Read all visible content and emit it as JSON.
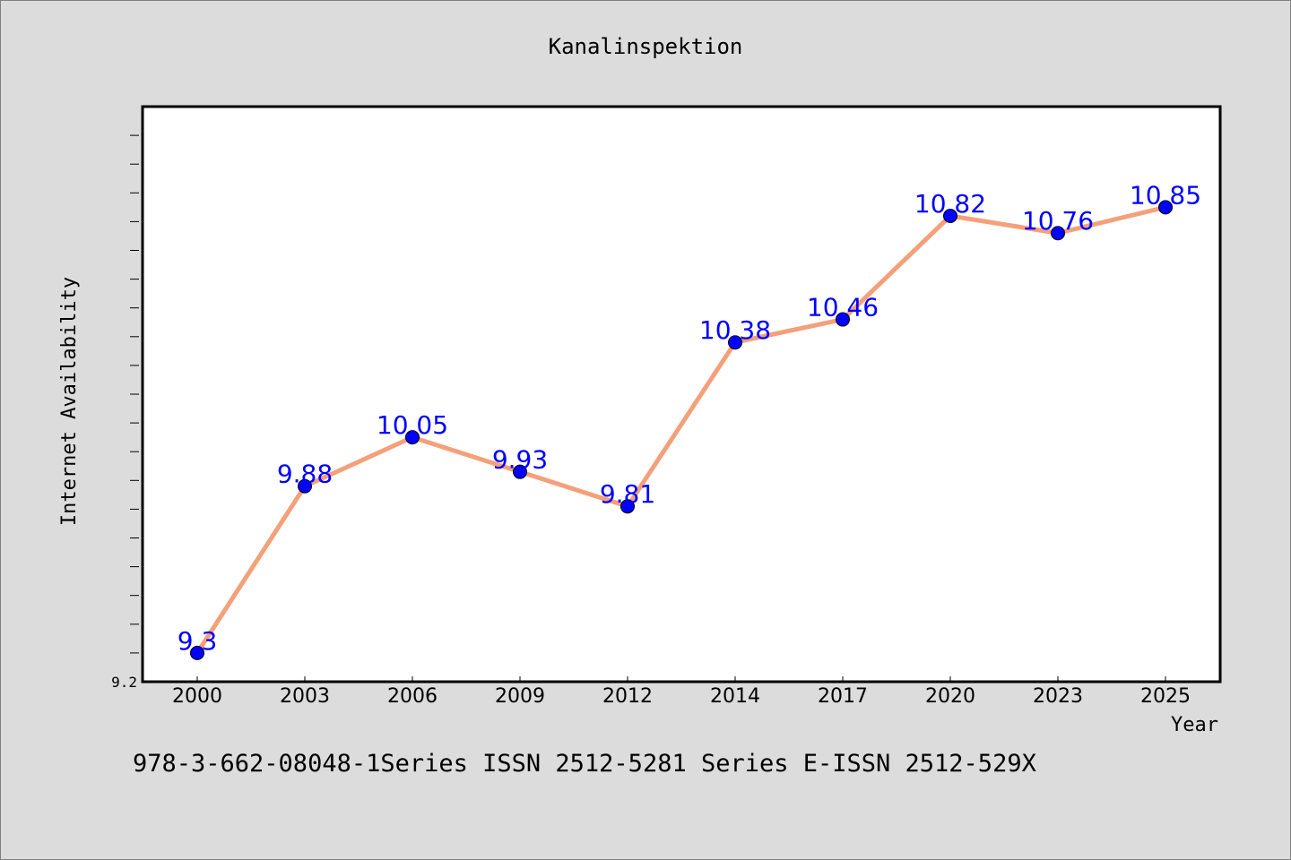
{
  "chart_data": {
    "type": "line",
    "title": "Kanalinspektion",
    "xlabel": "Year",
    "ylabel": "Internet Availability",
    "categories": [
      "2000",
      "2003",
      "2006",
      "2009",
      "2012",
      "2014",
      "2017",
      "2020",
      "2023",
      "2025"
    ],
    "values": [
      9.3,
      9.88,
      10.05,
      9.93,
      9.81,
      10.38,
      10.46,
      10.82,
      10.76,
      10.85
    ],
    "data_labels": [
      "9.3",
      "9.88",
      "10.05",
      "9.93",
      "9.81",
      "10.38",
      "10.46",
      "10.82",
      "10.76",
      "10.85"
    ],
    "ylim": [
      9.2,
      11.2
    ],
    "y_tick_label": "9.2",
    "grid": false,
    "legend": "none",
    "colors": {
      "line": "#f4a07a",
      "marker": "#0000ff",
      "data_label": "#0000ff",
      "plot_bg": "#ffffff",
      "figure_bg": "#dcdcdc"
    }
  },
  "footer": {
    "text": "978-3-662-08048-1Series ISSN 2512-5281 Series E-ISSN 2512-529X"
  }
}
